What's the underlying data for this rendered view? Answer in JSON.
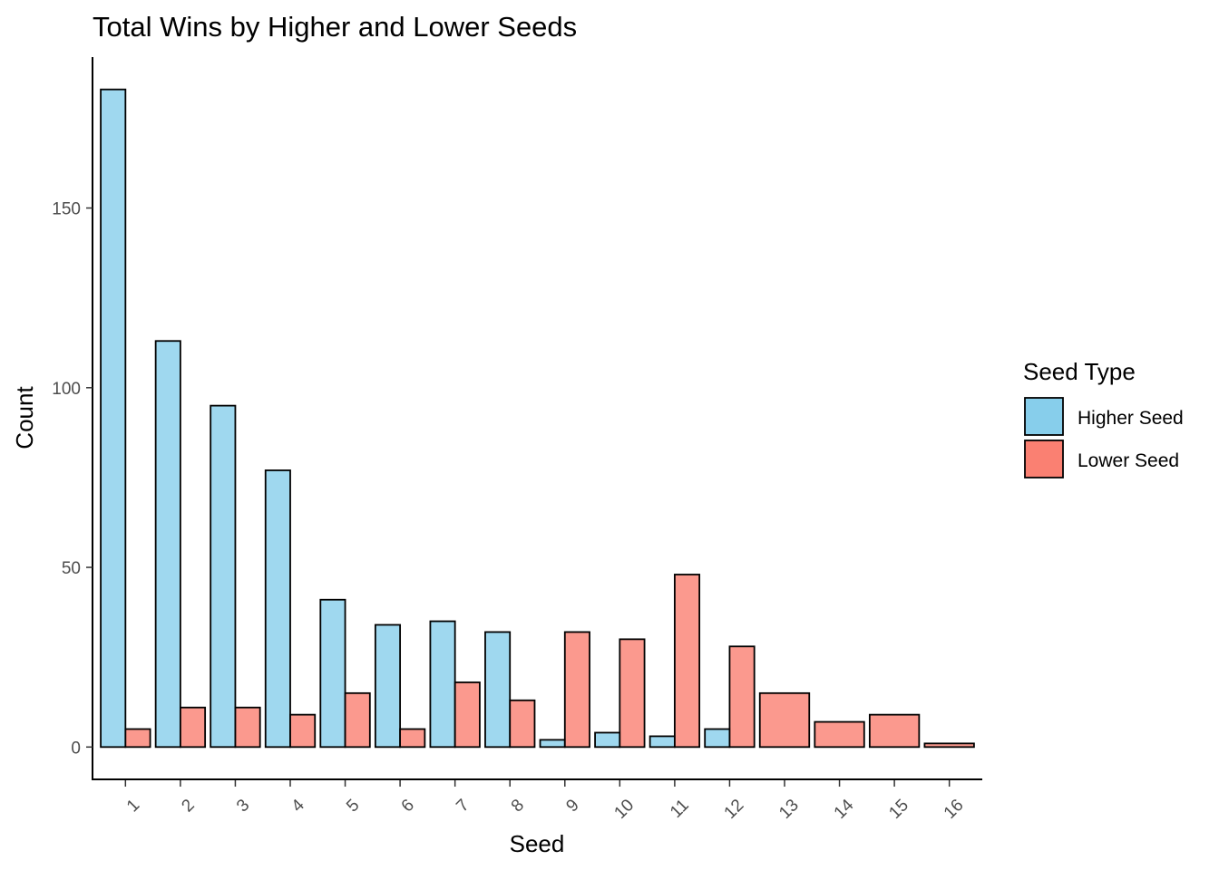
{
  "chart_data": {
    "type": "bar",
    "title": "Total Wins by Higher and Lower Seeds",
    "xlabel": "Seed",
    "ylabel": "Count",
    "categories": [
      "1",
      "2",
      "3",
      "4",
      "5",
      "6",
      "7",
      "8",
      "9",
      "10",
      "11",
      "12",
      "13",
      "14",
      "15",
      "16"
    ],
    "series": [
      {
        "name": "Higher Seed",
        "color": "#87CEEB",
        "values": [
          183,
          113,
          95,
          77,
          41,
          34,
          35,
          32,
          2,
          4,
          3,
          5,
          0,
          0,
          0,
          0
        ]
      },
      {
        "name": "Lower Seed",
        "color": "#FA8072",
        "values": [
          5,
          11,
          11,
          9,
          15,
          5,
          18,
          13,
          32,
          30,
          48,
          28,
          15,
          7,
          9,
          1
        ]
      }
    ],
    "ylim": [
      -9,
      192
    ],
    "yticks": [
      0,
      50,
      100,
      150
    ],
    "grid": false,
    "legend": {
      "title": "Seed Type",
      "position": "right"
    }
  }
}
